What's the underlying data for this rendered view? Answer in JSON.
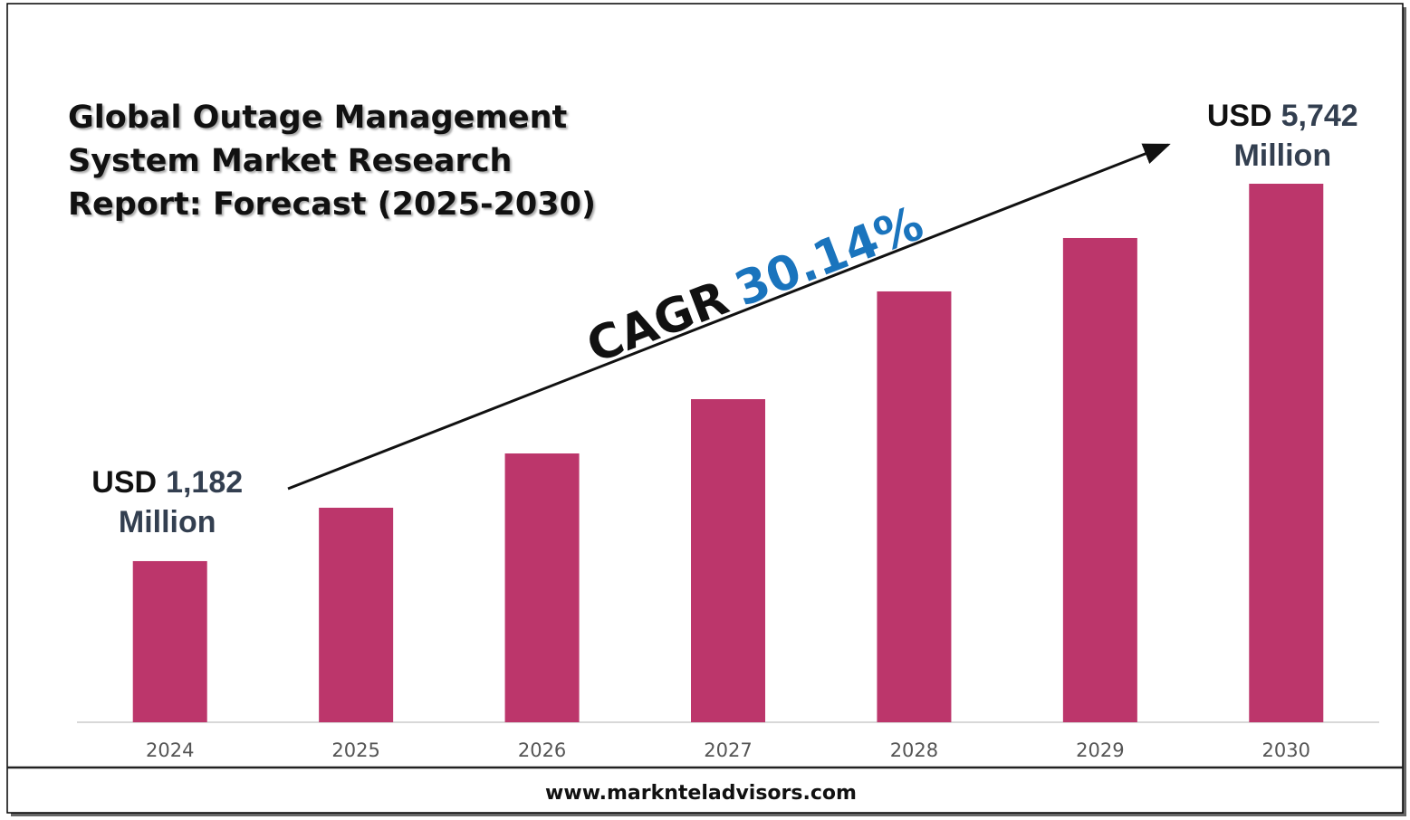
{
  "chart_data": {
    "type": "bar",
    "title": "Global Outage Management System Market Research Report: Forecast (2025-2030)",
    "categories": [
      "2024",
      "2025",
      "2026",
      "2027",
      "2028",
      "2029",
      "2030"
    ],
    "values": [
      1182,
      1827,
      2483,
      3139,
      4441,
      5086,
      5742
    ],
    "value_labels": [
      "1,182",
      null,
      null,
      null,
      null,
      null,
      "5,742"
    ],
    "color": "#bc366b",
    "ylim": [
      -765,
      5742
    ],
    "annotations": {
      "currency": "USD",
      "unit": "Million",
      "cagr_label": "CAGR",
      "cagr_value": "30.14%"
    },
    "source": "www.marknteladvisors.com"
  }
}
